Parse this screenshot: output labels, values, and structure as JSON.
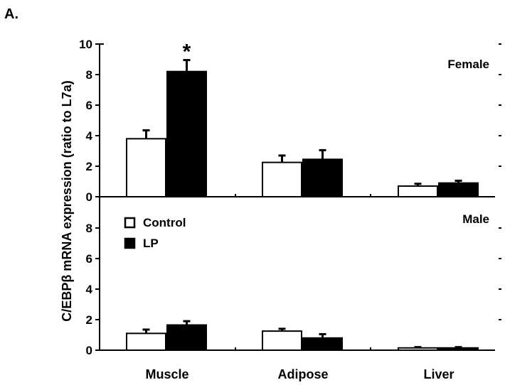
{
  "figure_label": "A.",
  "chart_data": {
    "type": "bar",
    "ylabel": "C/EBPβ mRNA expression (ratio to L7a)",
    "categories": [
      "Muscle",
      "Adipose",
      "Liver"
    ],
    "legend": {
      "placement": "upper-left of lower panel",
      "entries": [
        {
          "label": "Control",
          "color": "#ffffff"
        },
        {
          "label": "LP",
          "color": "#000000"
        }
      ]
    },
    "panels": [
      {
        "title": "Female",
        "ylim": [
          0,
          10
        ],
        "yticks": [
          "0",
          "2",
          "4",
          "6",
          "8",
          "10"
        ],
        "series": [
          {
            "name": "Control",
            "values": [
              3.8,
              2.25,
              0.7
            ],
            "errors": [
              0.55,
              0.45,
              0.15
            ]
          },
          {
            "name": "LP",
            "values": [
              8.2,
              2.45,
              0.9
            ],
            "errors": [
              0.75,
              0.6,
              0.15
            ]
          }
        ],
        "annotations": [
          {
            "text": "*",
            "category": "Muscle",
            "series": "LP"
          }
        ]
      },
      {
        "title": "Male",
        "ylim": [
          0,
          10
        ],
        "yticks": [
          "0",
          "2",
          "4",
          "6",
          "8"
        ],
        "series": [
          {
            "name": "Control",
            "values": [
              1.1,
              1.25,
              0.15
            ],
            "errors": [
              0.25,
              0.15,
              0.05
            ]
          },
          {
            "name": "LP",
            "values": [
              1.65,
              0.8,
              0.15
            ],
            "errors": [
              0.25,
              0.25,
              0.05
            ]
          }
        ],
        "annotations": []
      }
    ]
  }
}
